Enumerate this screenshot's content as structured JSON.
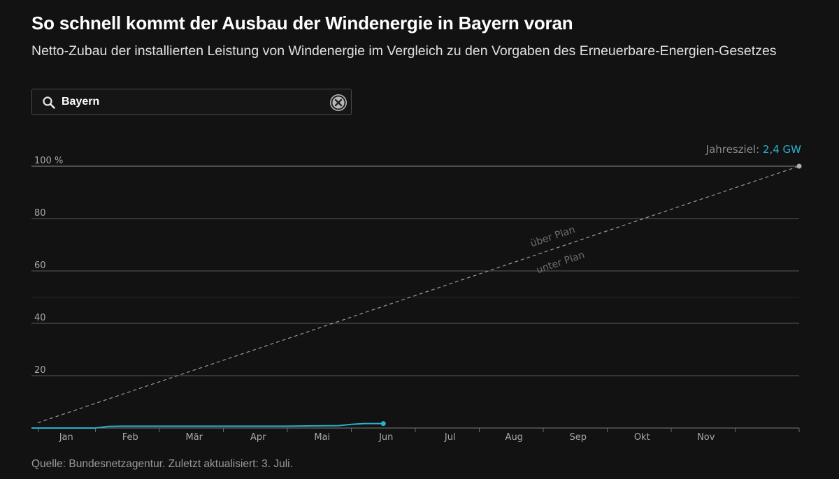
{
  "title": "So schnell kommt der Ausbau der Windenergie in Bayern voran",
  "subtitle": "Netto-Zubau der installierten Leistung von Windenergie im Vergleich zu den Vorgaben des Erneuerbare-Energien-Gesetzes",
  "search": {
    "value": "Bayern",
    "icon": "search-icon",
    "clear_icon": "close-icon"
  },
  "source": "Quelle: Bundesnetzagentur. Zuletzt aktualisiert: 3. Juli.",
  "colors": {
    "accent": "#2ab0c8",
    "plan": "#9a9a9a",
    "background": "#121212"
  },
  "chart_data": {
    "type": "line",
    "y_unit": "%",
    "ylim": [
      0,
      100
    ],
    "y_ticks": [
      20,
      40,
      60,
      80,
      100
    ],
    "y_tick_labels": [
      "20",
      "40",
      "60",
      "80",
      "100"
    ],
    "y_top_suffix": "%",
    "months": [
      "Jan",
      "Feb",
      "Mär",
      "Apr",
      "Mai",
      "Jun",
      "Jul",
      "Aug",
      "Sep",
      "Okt",
      "Nov"
    ],
    "xlim_months": [
      0,
      12
    ],
    "goal_label": "Jahresziel:",
    "goal_value": "2,4 GW",
    "plan_above_label": "über Plan",
    "plan_below_label": "unter Plan",
    "grid": true,
    "series": [
      {
        "role": "actual",
        "style": "solid",
        "x_months": [
          0.0,
          0.3,
          0.7,
          1.0,
          1.2,
          1.4,
          2.0,
          3.0,
          4.0,
          4.3,
          4.8,
          5.0,
          5.2,
          5.5
        ],
        "values": [
          0.0,
          0.0,
          0.0,
          0.0,
          0.6,
          0.7,
          0.7,
          0.7,
          0.7,
          0.8,
          0.9,
          1.4,
          1.7,
          1.7
        ]
      },
      {
        "role": "plan",
        "style": "dashed",
        "x_months": [
          0,
          12
        ],
        "values": [
          2,
          100
        ]
      }
    ]
  }
}
